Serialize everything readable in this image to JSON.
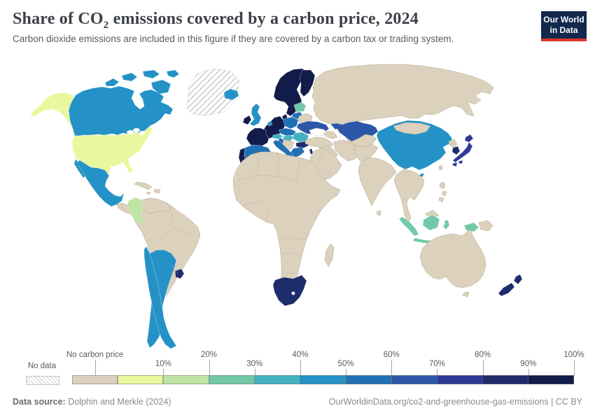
{
  "header": {
    "title_pre": "Share of CO",
    "title_sub": "2",
    "title_post": " emissions covered by a carbon price, 2024",
    "subtitle": "Carbon dioxide emissions are included in this figure if they are covered by a carbon tax or trading system."
  },
  "logo": {
    "line1": "Our World",
    "line2": "in Data",
    "bg_color": "#12294d",
    "accent_color": "#d8352a"
  },
  "legend": {
    "no_data_label": "No data",
    "bands": [
      {
        "label": "No carbon price",
        "color": "#dcd1bd"
      },
      {
        "label": "10%",
        "color": "#e9f89e"
      },
      {
        "label": "20%",
        "color": "#bfe5a4"
      },
      {
        "label": "30%",
        "color": "#72c8a7"
      },
      {
        "label": "40%",
        "color": "#43b3c2"
      },
      {
        "label": "50%",
        "color": "#2492c6"
      },
      {
        "label": "60%",
        "color": "#2070b4"
      },
      {
        "label": "70%",
        "color": "#2c57a8"
      },
      {
        "label": "80%",
        "color": "#2e3a96"
      },
      {
        "label": "90%",
        "color": "#1f2c6b"
      },
      {
        "label": "100%",
        "color": "#121c4b"
      }
    ]
  },
  "footer": {
    "source_prefix": "Data source:",
    "source": "Dolphin and Merkle (2024)",
    "attribution": "OurWorldinData.org/co2-and-greenhouse-gas-emissions | CC BY"
  },
  "map": {
    "ocean_color": "#ffffff",
    "no_data_line_color": "#cccccc",
    "band_colors": {
      "no_price": "#dcd1bd",
      "b0": "#e9f89e",
      "b10": "#bfe5a4",
      "b20": "#72c8a7",
      "b30": "#43b3c2",
      "b40": "#2492c6",
      "b50": "#2070b4",
      "b60": "#2c57a8",
      "b70": "#2e3a96",
      "b80": "#1f2c6b",
      "b90": "#121c4b",
      "no_data": "hatch"
    },
    "countries": {
      "greenland": "no_data",
      "usa": "b0",
      "usa-alaska": "b0",
      "colombia": "b10",
      "indonesia": "b20",
      "estonia-latvia": "b20",
      "austria": "b30",
      "hungary": "b30",
      "romania": "b30",
      "canada": "b40",
      "mexico": "b40",
      "united-kingdom": "b40",
      "iceland": "b40",
      "netherlands": "b40",
      "china": "b40",
      "chile": "b40",
      "argentina": "b40",
      "spain": "b50",
      "italy": "b50",
      "poland": "b50",
      "czechia-slovakia": "b50",
      "greece": "b50",
      "croatia": "b50",
      "lithuania": "b50",
      "ukraine": "b60",
      "kazakhstan": "b60",
      "japan": "b70",
      "south-korea": "b80",
      "uruguay": "b80",
      "south-africa": "b80",
      "new-zealand": "b80",
      "bulgaria": "b80",
      "israel": "b80",
      "norway-sweden": "b90",
      "finland": "b90",
      "denmark": "b90",
      "ireland": "b90",
      "france": "b90",
      "germany-benelux-switzerland": "b90",
      "portugal": "b90",
      "russia": "no_price",
      "russia-chukotka": "no_price",
      "belarus": "no_price",
      "balkans": "no_price",
      "turkey": "no_price",
      "caucasus": "no_price",
      "iran": "no_price",
      "iraq-syria": "no_price",
      "arabia": "no_price",
      "central-asia": "no_price",
      "afghanistan-pakistan": "no_price",
      "india": "no_price",
      "sri-lanka": "no_price",
      "mongolia": "no_price",
      "north-korea": "no_price",
      "taiwan": "no_price",
      "indochina": "no_price",
      "philippines": "no_price",
      "malaysia-borneo": "no_price",
      "papua-new-guinea": "no_price",
      "australia": "no_price",
      "tasmania": "no_price",
      "madagascar": "no_price",
      "africa": "no_price",
      "south-america": "no_price",
      "venezuela-guyanas": "no_price",
      "central-america": "no_price",
      "cuba": "no_price",
      "hispaniola": "no_price",
      "jamaica": "no_price"
    }
  },
  "chart_data": {
    "type": "heatmap",
    "variant": "choropleth-world-map",
    "title": "Share of CO2 emissions covered by a carbon price, 2024",
    "subtitle": "Carbon dioxide emissions are included in this figure if they are covered by a carbon tax or trading system.",
    "unit": "%",
    "legend_bins": [
      "No data",
      "No carbon price",
      "0-10%",
      "10-20%",
      "20-30%",
      "30-40%",
      "40-50%",
      "50-60%",
      "60-70%",
      "70-80%",
      "80-90%",
      "90-100%"
    ],
    "values_by_country": {
      "United States": "0-10%",
      "Colombia": "10-20%",
      "Indonesia": "20-30%",
      "Estonia": "20-30%",
      "Latvia": "20-30%",
      "Austria": "30-40%",
      "Hungary": "30-40%",
      "Romania": "30-40%",
      "Canada": "40-50%",
      "Mexico": "40-50%",
      "United Kingdom": "40-50%",
      "Iceland": "40-50%",
      "Netherlands": "40-50%",
      "China": "40-50%",
      "Chile": "40-50%",
      "Argentina": "40-50%",
      "Spain": "50-60%",
      "Italy": "50-60%",
      "Poland": "50-60%",
      "Czechia": "50-60%",
      "Slovakia": "50-60%",
      "Greece": "50-60%",
      "Croatia": "50-60%",
      "Lithuania": "50-60%",
      "Ukraine": "60-70%",
      "Kazakhstan": "60-70%",
      "Japan": "70-80%",
      "South Korea": "80-90%",
      "Uruguay": "80-90%",
      "South Africa": "80-90%",
      "New Zealand": "80-90%",
      "Bulgaria": "80-90%",
      "Israel": "80-90%",
      "Norway": "90-100%",
      "Sweden": "90-100%",
      "Finland": "90-100%",
      "Denmark": "90-100%",
      "Germany": "90-100%",
      "France": "90-100%",
      "Ireland": "90-100%",
      "Portugal": "90-100%",
      "Switzerland": "90-100%",
      "Belgium": "90-100%",
      "Luxembourg": "90-100%"
    },
    "no_carbon_price_regions": [
      "Russia",
      "India",
      "Brazil",
      "Australia",
      "Turkey",
      "Middle East",
      "most of Africa",
      "Southeast Asia mainland",
      "Central America"
    ],
    "no_data_regions": [
      "Greenland"
    ]
  }
}
